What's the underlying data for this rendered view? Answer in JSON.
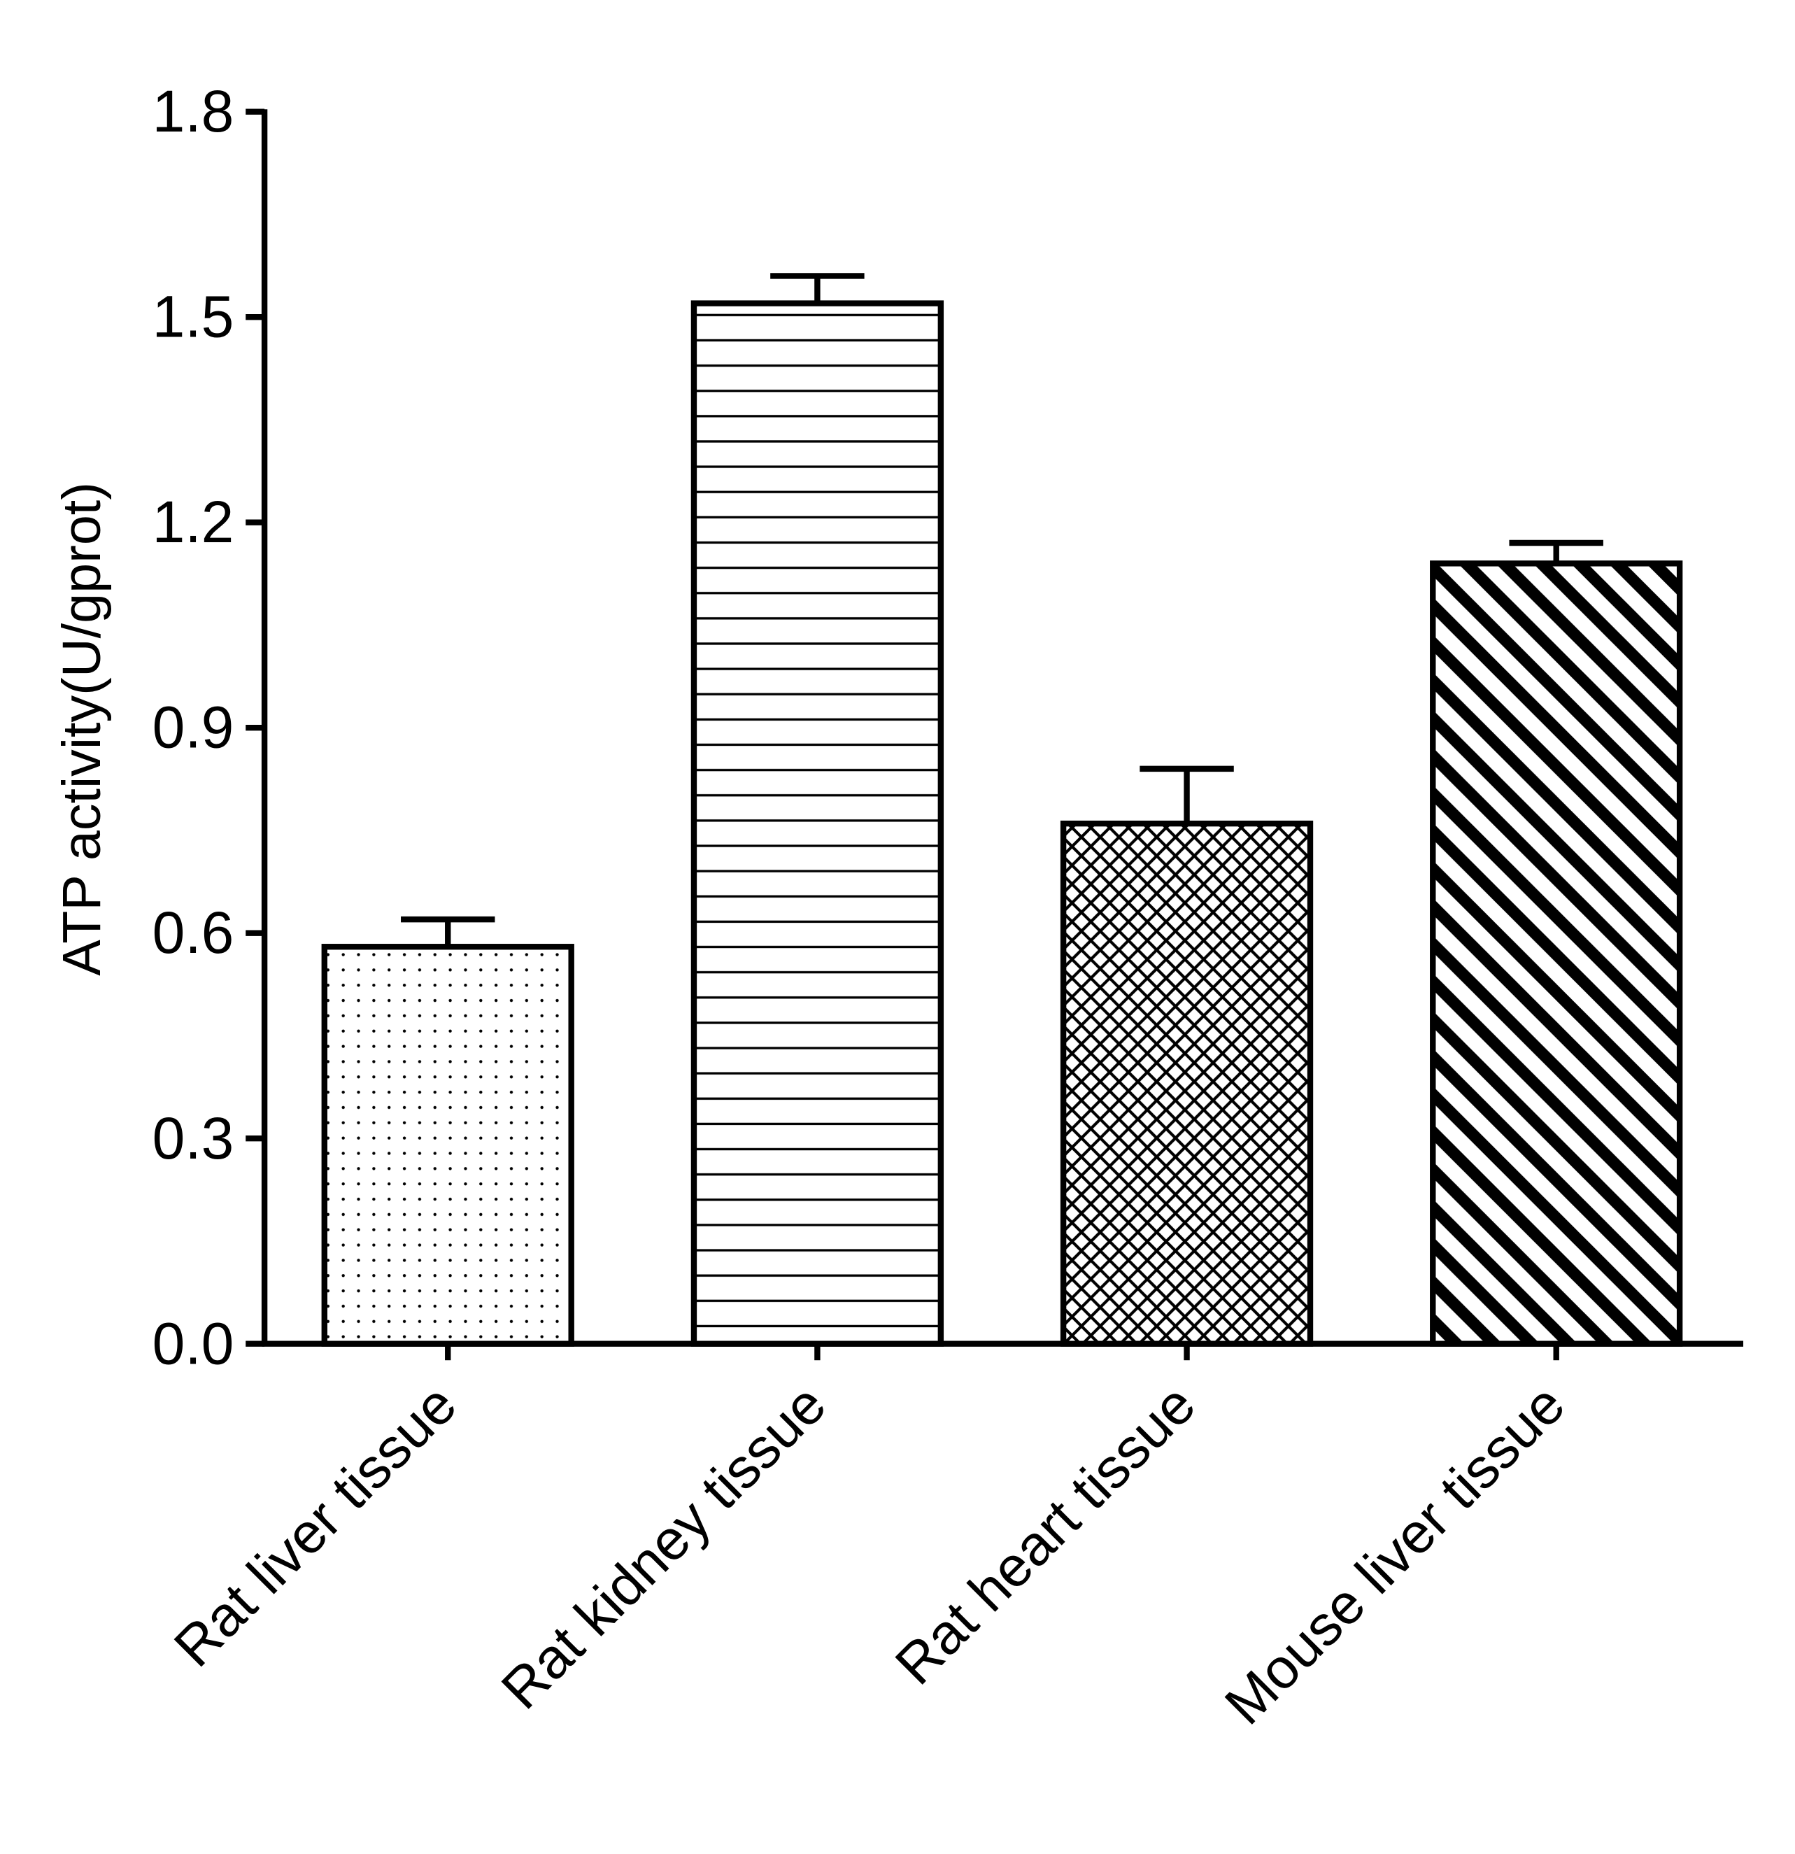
{
  "chart_data": {
    "type": "bar",
    "y_label": "ATP activity(U/gprot)",
    "categories": [
      "Rat liver tissue",
      "Rat kidney tissue",
      "Rat heart tissue",
      "Mouse liver tissue"
    ],
    "values": [
      0.58,
      1.52,
      0.76,
      1.14
    ],
    "errors": [
      0.04,
      0.04,
      0.08,
      0.03
    ],
    "patterns": [
      "dots",
      "horizontal",
      "crosshatch",
      "diagonal"
    ],
    "color": "#000000",
    "ylim": [
      0,
      1.8
    ],
    "yticks": [
      {
        "value": 0,
        "label": "0.0"
      },
      0.3,
      0.6,
      0.9,
      1.2,
      1.5,
      1.8
    ],
    "grid": false
  }
}
